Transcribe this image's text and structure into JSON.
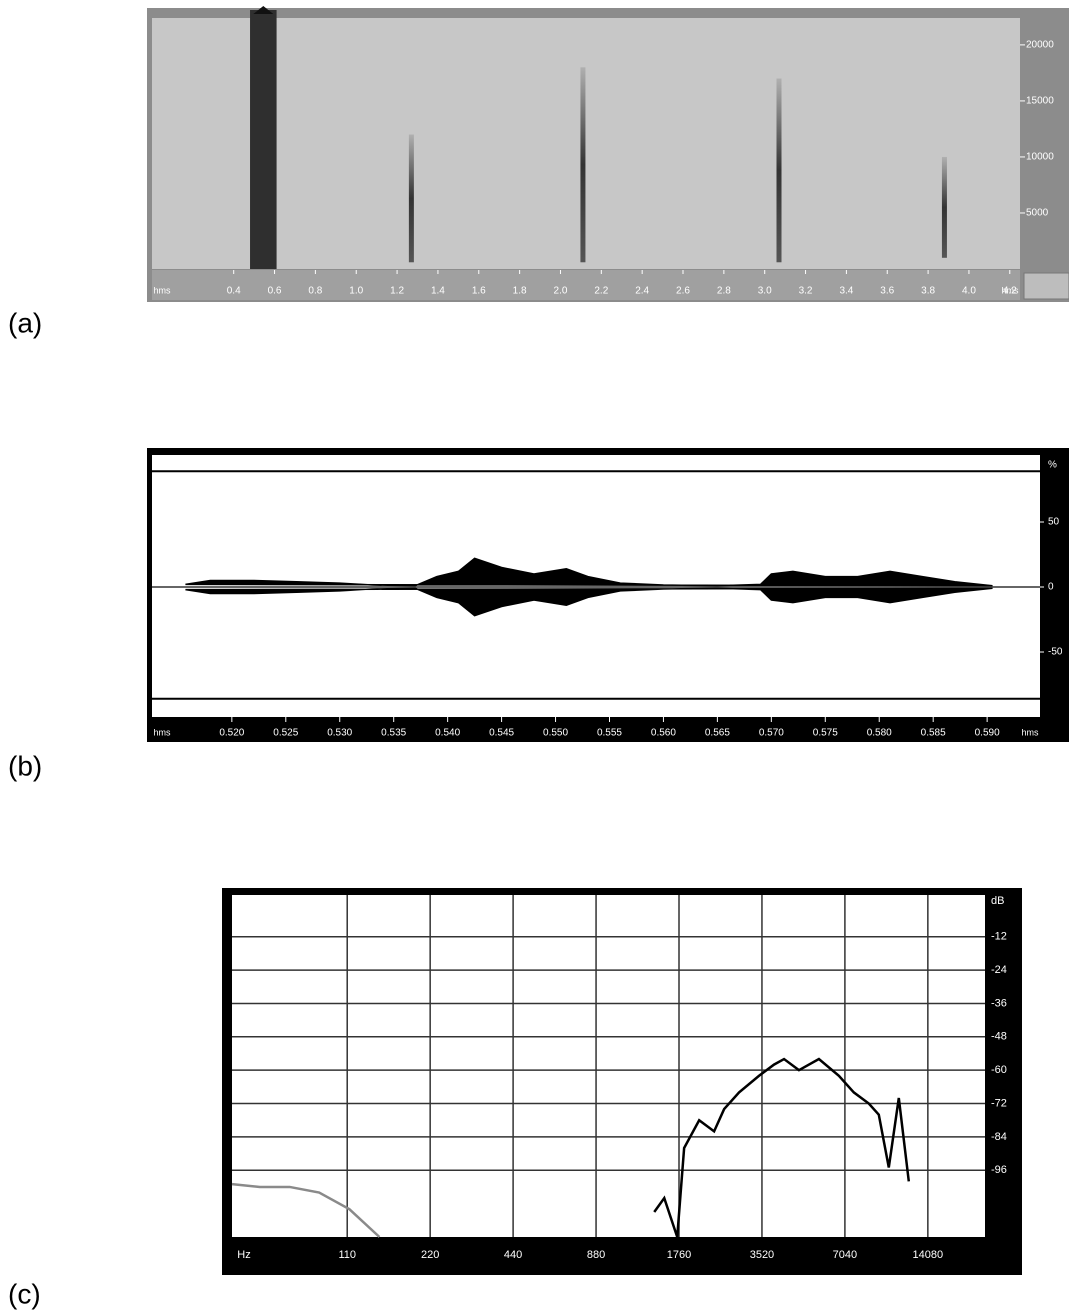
{
  "chart_data": [
    {
      "type": "spectrogram",
      "panel_label": "(a)",
      "x_unit_label": "hms",
      "xlim": [
        0,
        4.25
      ],
      "xticks": [
        0.4,
        0.6,
        0.8,
        {
          "value": 1,
          "label": "1.0"
        },
        1.2,
        1.4,
        1.6,
        1.8,
        {
          "value": 2,
          "label": "2.0"
        },
        2.2,
        2.4,
        2.6,
        2.8,
        {
          "value": 3,
          "label": "3.0"
        },
        3.2,
        3.4,
        3.6,
        3.8,
        {
          "value": 4,
          "label": "4.0"
        },
        4.2
      ],
      "ylim": [
        0,
        22400
      ],
      "yticks": [
        5000,
        10000,
        15000,
        20000
      ],
      "selection": [
        0.48,
        0.61
      ],
      "x": [
        1.27,
        2.11,
        3.07,
        3.88
      ],
      "values": [
        12000,
        18000,
        17000,
        10000
      ],
      "lows": [
        600,
        600,
        600,
        1000
      ]
    },
    {
      "type": "waveform",
      "panel_label": "(b)",
      "x_unit_label": "hms",
      "y_label": "%",
      "xlim": [
        0.5126,
        0.5949
      ],
      "xticks": [
        {
          "value": 0.52,
          "label": "0.520"
        },
        {
          "value": 0.525,
          "label": "0.525"
        },
        {
          "value": 0.53,
          "label": "0.530"
        },
        {
          "value": 0.535,
          "label": "0.535"
        },
        {
          "value": 0.54,
          "label": "0.540"
        },
        {
          "value": 0.545,
          "label": "0.545"
        },
        {
          "value": 0.55,
          "label": "0.550"
        },
        {
          "value": 0.555,
          "label": "0.555"
        },
        {
          "value": 0.56,
          "label": "0.560"
        },
        {
          "value": 0.565,
          "label": "0.565"
        },
        {
          "value": 0.57,
          "label": "0.570"
        },
        {
          "value": 0.575,
          "label": "0.575"
        },
        {
          "value": 0.58,
          "label": "0.580"
        },
        {
          "value": 0.585,
          "label": "0.585"
        },
        {
          "value": 0.59,
          "label": "0.590"
        }
      ],
      "ylim": [
        -100,
        100
      ],
      "yticks": [
        50,
        0,
        -50
      ],
      "clip_levels": [
        89,
        -86
      ],
      "x": [
        0.5157,
        0.518,
        0.522,
        0.526,
        0.53,
        0.533,
        0.537,
        0.539,
        0.541,
        0.5425,
        0.545,
        0.548,
        0.551,
        0.553,
        0.556,
        0.56,
        0.565,
        0.569,
        0.57,
        0.572,
        0.575,
        0.578,
        0.581,
        0.584,
        0.587,
        0.5905
      ],
      "values": [
        2,
        5,
        5,
        4,
        3,
        1.5,
        1,
        8,
        12,
        22,
        15,
        10,
        14,
        8,
        3,
        1.5,
        1,
        2,
        10,
        12,
        8,
        8,
        12,
        8,
        4,
        1
      ]
    },
    {
      "type": "line",
      "panel_label": "(c)",
      "xscale": "log",
      "xlabel": "Hz",
      "ylabel": "dB",
      "grid": true,
      "xlim": [
        42,
        22700
      ],
      "xticks": [
        110,
        220,
        440,
        880,
        1760,
        3520,
        7040,
        14080
      ],
      "ylim": [
        -120,
        3
      ],
      "yticks": [
        -12,
        -24,
        -36,
        -48,
        -60,
        -72,
        -84,
        -96
      ],
      "series": [
        {
          "color": "#8a8a8a",
          "x": [
            42,
            53,
            68,
            87,
            112,
            144
          ],
          "values": [
            -101,
            -102,
            -102,
            -104,
            -110,
            -120
          ]
        },
        {
          "color": "#000000",
          "x": [
            1431,
            1556,
            1734,
            1837,
            2083,
            2360,
            2566,
            2907,
            3436,
            3893,
            4234,
            4795,
            5666,
            6694,
            7585,
            8597,
            9345,
            10160,
            11046,
            12008
          ],
          "values": [
            -111,
            -106,
            -120,
            -88,
            -78,
            -82,
            -74,
            -68,
            -62,
            -58,
            -56,
            -60,
            -56,
            -62,
            -68,
            -72,
            -76,
            -95,
            -70,
            -100
          ]
        }
      ]
    }
  ]
}
